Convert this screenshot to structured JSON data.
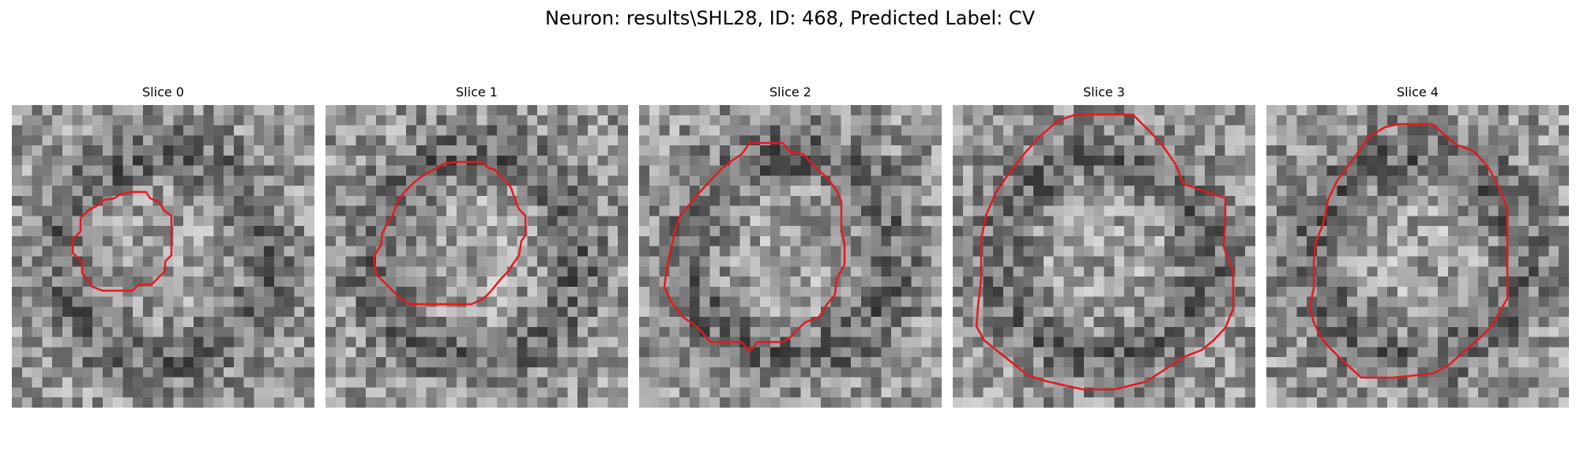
{
  "figure": {
    "title": "Neuron: results\\SHL28, ID: 468, Predicted Label: CV"
  },
  "panels": [
    {
      "title": "Slice 0",
      "seed": 11,
      "outline_color": "#e41a1c"
    },
    {
      "title": "Slice 1",
      "seed": 23,
      "outline_color": "#e41a1c"
    },
    {
      "title": "Slice 2",
      "seed": 37,
      "outline_color": "#e41a1c"
    },
    {
      "title": "Slice 3",
      "seed": 51,
      "outline_color": "#e41a1c"
    },
    {
      "title": "Slice 4",
      "seed": 73,
      "outline_color": "#e41a1c"
    }
  ]
}
